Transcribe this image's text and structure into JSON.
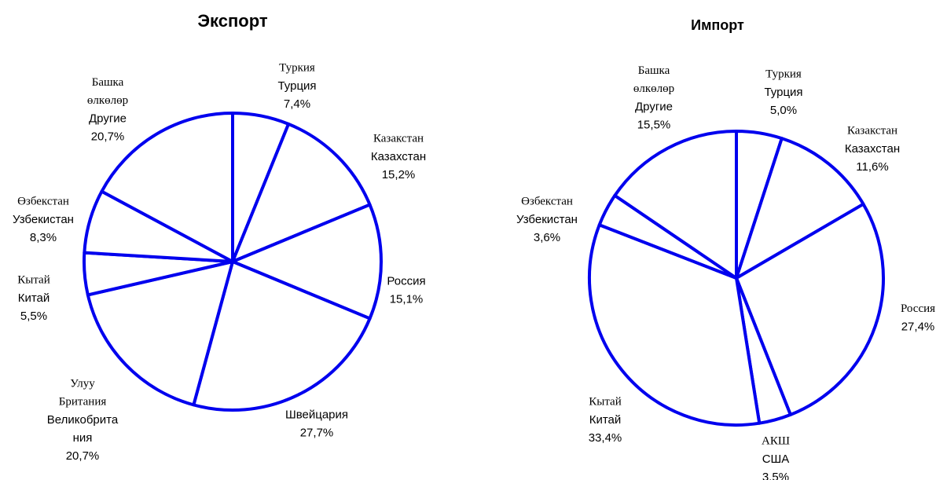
{
  "chart_data": [
    {
      "type": "pie",
      "title": "Экспорт",
      "color": "#0000ee",
      "categories": [
        {
          "ky": [
            "Туркия"
          ],
          "ru": [
            "Турция"
          ]
        },
        {
          "ky": [
            "Казакстан"
          ],
          "ru": [
            "Казахстан"
          ]
        },
        {
          "ru": [
            "Россия"
          ]
        },
        {
          "ru": [
            "Швейцария"
          ]
        },
        {
          "ky": [
            "Улуу",
            "Британия"
          ],
          "ru": [
            "Великобрита",
            "ния"
          ]
        },
        {
          "ky": [
            "Кытай"
          ],
          "ru": [
            "Китай"
          ]
        },
        {
          "ky": [
            "Өзбекстан"
          ],
          "ru": [
            "Узбекистан"
          ]
        },
        {
          "ky": [
            "Башка",
            "өлкөлөр"
          ],
          "ru": [
            "Другие"
          ]
        }
      ],
      "values": [
        7.4,
        15.2,
        15.1,
        27.7,
        20.7,
        5.5,
        8.3,
        20.7
      ],
      "value_labels": [
        "7,4%",
        "15,2%",
        "15,1%",
        "27,7%",
        "20,7%",
        "5,5%",
        "8,3%",
        "20,7%"
      ]
    },
    {
      "type": "pie",
      "title": "Импорт",
      "color": "#0000ee",
      "categories": [
        {
          "ky": [
            "Туркия"
          ],
          "ru": [
            "Турция"
          ]
        },
        {
          "ky": [
            "Казакстан"
          ],
          "ru": [
            "Казахстан"
          ]
        },
        {
          "ky": [
            "Россия"
          ]
        },
        {
          "ky": [
            "АКШ"
          ],
          "ru": [
            "США"
          ]
        },
        {
          "ky": [
            "Кытай"
          ],
          "ru": [
            "Китай"
          ]
        },
        {
          "ky": [
            "Өзбекстан"
          ],
          "ru": [
            "Узбекистан"
          ]
        },
        {
          "ky": [
            "Башка",
            "өлкөлөр"
          ],
          "ru": [
            "Другие"
          ]
        }
      ],
      "values": [
        5.0,
        11.6,
        27.4,
        3.5,
        33.4,
        3.6,
        15.5
      ],
      "value_labels": [
        "5,0%",
        "11,6%",
        "27,4%",
        "3.5%",
        "33,4%",
        "3,6%",
        "15,5%"
      ]
    }
  ]
}
